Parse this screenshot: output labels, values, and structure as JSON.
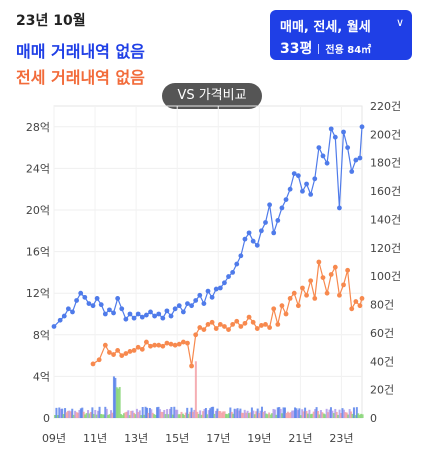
{
  "header": {
    "date": "23년 10월",
    "sale_text": "매매 거래내역 없음",
    "jeonse_text": "전세 거래내역 없음"
  },
  "filter": {
    "label": "매매, 전세, 월세",
    "pyeong": "33평",
    "area": "전용 84㎡"
  },
  "vs_button": {
    "label": "VS 가격비교"
  },
  "colors": {
    "sale": "#4f7bea",
    "jeonse": "#f7894e",
    "accent": "#1f3fe6"
  },
  "chart_data": {
    "type": "line",
    "x_ticks": [
      "09년",
      "11년",
      "13년",
      "15년",
      "17년",
      "19년",
      "21년",
      "23년"
    ],
    "x_range": [
      2009.0,
      2024.0
    ],
    "y_left": {
      "ticks": [
        "0",
        "4억",
        "8억",
        "12억",
        "16억",
        "20억",
        "24억",
        "28억"
      ],
      "range": [
        0,
        30
      ]
    },
    "y_right": {
      "ticks": [
        "0",
        "20건",
        "40건",
        "60건",
        "80건",
        "100건",
        "120건",
        "140건",
        "160건",
        "180건",
        "200건",
        "220건"
      ],
      "range": [
        0,
        220
      ]
    },
    "series": [
      {
        "color": "#4f7bea",
        "points": [
          [
            2009.0,
            8.8
          ],
          [
            2009.3,
            9.4
          ],
          [
            2009.5,
            9.8
          ],
          [
            2009.7,
            10.5
          ],
          [
            2009.9,
            10.2
          ],
          [
            2010.1,
            11.3
          ],
          [
            2010.3,
            12.0
          ],
          [
            2010.5,
            11.6
          ],
          [
            2010.7,
            11.0
          ],
          [
            2010.9,
            10.8
          ],
          [
            2011.1,
            11.5
          ],
          [
            2011.3,
            10.9
          ],
          [
            2011.5,
            10.0
          ],
          [
            2011.7,
            10.4
          ],
          [
            2011.9,
            10.1
          ],
          [
            2012.1,
            11.5
          ],
          [
            2012.3,
            10.5
          ],
          [
            2012.5,
            9.5
          ],
          [
            2012.7,
            10.0
          ],
          [
            2012.9,
            9.6
          ],
          [
            2013.1,
            10.0
          ],
          [
            2013.3,
            9.7
          ],
          [
            2013.5,
            9.9
          ],
          [
            2013.7,
            10.2
          ],
          [
            2013.9,
            9.8
          ],
          [
            2014.1,
            10.0
          ],
          [
            2014.3,
            9.6
          ],
          [
            2014.5,
            10.3
          ],
          [
            2014.7,
            9.8
          ],
          [
            2014.9,
            10.5
          ],
          [
            2015.1,
            10.8
          ],
          [
            2015.3,
            10.2
          ],
          [
            2015.5,
            11.0
          ],
          [
            2015.7,
            10.8
          ],
          [
            2015.9,
            11.3
          ],
          [
            2016.1,
            11.8
          ],
          [
            2016.3,
            11.0
          ],
          [
            2016.5,
            12.2
          ],
          [
            2016.7,
            11.6
          ],
          [
            2016.9,
            12.4
          ],
          [
            2017.1,
            12.5
          ],
          [
            2017.3,
            13.0
          ],
          [
            2017.5,
            13.6
          ],
          [
            2017.7,
            14.0
          ],
          [
            2017.9,
            14.8
          ],
          [
            2018.1,
            15.6
          ],
          [
            2018.3,
            17.2
          ],
          [
            2018.5,
            17.8
          ],
          [
            2018.7,
            17.0
          ],
          [
            2018.9,
            16.6
          ],
          [
            2019.1,
            18.0
          ],
          [
            2019.3,
            18.8
          ],
          [
            2019.5,
            20.5
          ],
          [
            2019.7,
            17.8
          ],
          [
            2019.9,
            19.0
          ],
          [
            2020.1,
            20.2
          ],
          [
            2020.3,
            21.0
          ],
          [
            2020.5,
            22.0
          ],
          [
            2020.7,
            23.5
          ],
          [
            2020.9,
            23.3
          ],
          [
            2021.1,
            21.8
          ],
          [
            2021.3,
            22.5
          ],
          [
            2021.5,
            21.5
          ],
          [
            2021.7,
            23.0
          ],
          [
            2021.9,
            26.0
          ],
          [
            2022.1,
            25.2
          ],
          [
            2022.3,
            24.5
          ],
          [
            2022.5,
            27.8
          ],
          [
            2022.7,
            27.0
          ],
          [
            2022.9,
            20.2
          ],
          [
            2023.1,
            27.5
          ],
          [
            2023.3,
            26.0
          ],
          [
            2023.5,
            23.7
          ],
          [
            2023.7,
            24.8
          ],
          [
            2023.9,
            25.0
          ],
          [
            2024.0,
            28.0
          ]
        ]
      },
      {
        "color": "#f7894e",
        "points": [
          [
            2010.9,
            5.2
          ],
          [
            2011.2,
            5.6
          ],
          [
            2011.5,
            7.0
          ],
          [
            2011.7,
            6.3
          ],
          [
            2011.9,
            6.1
          ],
          [
            2012.1,
            6.5
          ],
          [
            2012.3,
            6.0
          ],
          [
            2012.5,
            6.2
          ],
          [
            2012.7,
            6.4
          ],
          [
            2012.9,
            6.5
          ],
          [
            2013.1,
            6.8
          ],
          [
            2013.3,
            6.6
          ],
          [
            2013.5,
            7.3
          ],
          [
            2013.7,
            6.9
          ],
          [
            2013.9,
            7.0
          ],
          [
            2014.1,
            7.0
          ],
          [
            2014.3,
            6.9
          ],
          [
            2014.5,
            7.2
          ],
          [
            2014.7,
            7.1
          ],
          [
            2014.9,
            7.0
          ],
          [
            2015.1,
            7.1
          ],
          [
            2015.3,
            7.3
          ],
          [
            2015.5,
            7.2
          ],
          [
            2015.7,
            5.0
          ],
          [
            2015.9,
            8.0
          ],
          [
            2016.1,
            8.7
          ],
          [
            2016.3,
            8.5
          ],
          [
            2016.5,
            9.0
          ],
          [
            2016.7,
            9.2
          ],
          [
            2016.9,
            8.6
          ],
          [
            2017.1,
            9.0
          ],
          [
            2017.3,
            8.8
          ],
          [
            2017.5,
            8.5
          ],
          [
            2017.7,
            9.0
          ],
          [
            2017.9,
            9.3
          ],
          [
            2018.1,
            8.8
          ],
          [
            2018.3,
            9.1
          ],
          [
            2018.5,
            9.7
          ],
          [
            2018.7,
            9.2
          ],
          [
            2018.9,
            8.6
          ],
          [
            2019.1,
            8.9
          ],
          [
            2019.3,
            9.0
          ],
          [
            2019.5,
            8.7
          ],
          [
            2019.7,
            10.5
          ],
          [
            2019.9,
            9.0
          ],
          [
            2020.1,
            10.8
          ],
          [
            2020.3,
            10.0
          ],
          [
            2020.5,
            11.5
          ],
          [
            2020.7,
            12.0
          ],
          [
            2020.9,
            10.8
          ],
          [
            2021.1,
            12.5
          ],
          [
            2021.3,
            11.8
          ],
          [
            2021.5,
            13.2
          ],
          [
            2021.7,
            11.5
          ],
          [
            2021.9,
            15.0
          ],
          [
            2022.1,
            13.5
          ],
          [
            2022.3,
            12.0
          ],
          [
            2022.5,
            13.8
          ],
          [
            2022.7,
            14.5
          ],
          [
            2022.9,
            11.8
          ],
          [
            2023.1,
            12.8
          ],
          [
            2023.3,
            14.2
          ],
          [
            2023.5,
            10.5
          ],
          [
            2023.7,
            11.2
          ],
          [
            2023.9,
            10.8
          ],
          [
            2024.0,
            11.5
          ]
        ]
      }
    ]
  }
}
